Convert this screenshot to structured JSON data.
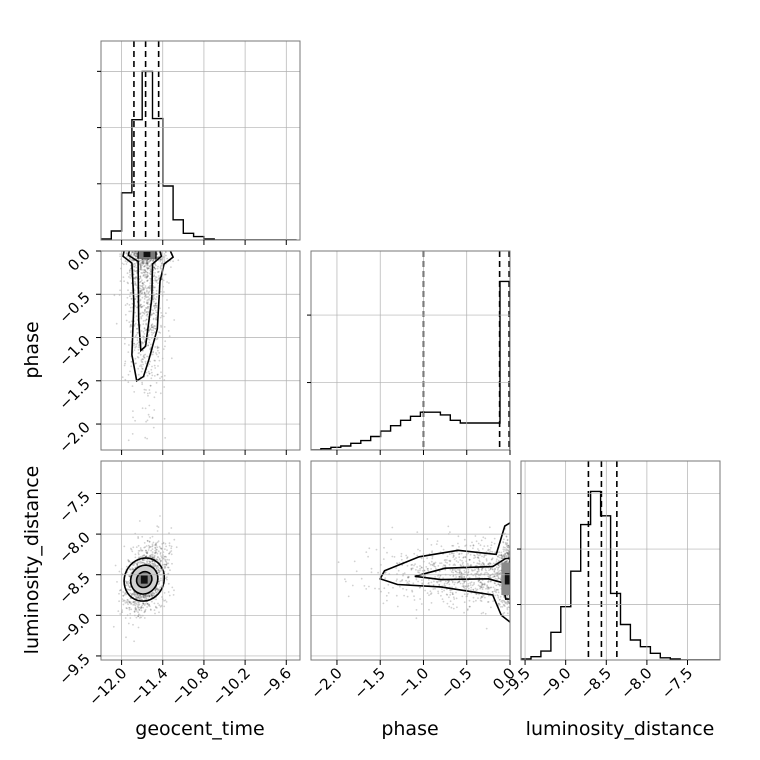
{
  "chart_data": {
    "type": "corner",
    "parameters": [
      "geocent_time",
      "phase",
      "luminosity_distance"
    ],
    "axis_labels": {
      "x": [
        "geocent_time",
        "phase",
        "luminosity_distance"
      ],
      "y": [
        "phase",
        "luminosity_distance"
      ]
    },
    "ranges": {
      "geocent_time": [
        -12.3,
        -9.4
      ],
      "phase": [
        -2.3,
        0.0
      ],
      "luminosity_distance": [
        -9.55,
        -7.1
      ]
    },
    "ticks": {
      "geocent_time": [
        -12.0,
        -11.4,
        -10.8,
        -10.2,
        -9.6
      ],
      "phase": [
        -2.0,
        -1.5,
        -1.0,
        -0.5,
        0.0
      ],
      "luminosity_distance": [
        -9.5,
        -9.0,
        -8.5,
        -8.0,
        -7.5
      ]
    },
    "tick_labels": {
      "geocent_time": [
        "−12.0",
        "−11.4",
        "−10.8",
        "−10.2",
        "−9.6"
      ],
      "phase": [
        "−2.0",
        "−1.5",
        "−1.0",
        "−0.5",
        "0.0"
      ],
      "luminosity_distance": [
        "−9.5",
        "−9.0",
        "−8.5",
        "−8.0",
        "−7.5"
      ]
    },
    "quantile_lines": {
      "geocent_time": [
        -11.82,
        -11.65,
        -11.46
      ],
      "phase": [
        -1.0,
        -0.12,
        -0.01
      ],
      "luminosity_distance": [
        -8.72,
        -8.56,
        -8.37
      ]
    },
    "histograms": {
      "geocent_time": {
        "edges": [
          -12.3,
          -12.15,
          -12.0,
          -11.85,
          -11.7,
          -11.55,
          -11.4,
          -11.25,
          -11.1,
          -10.95,
          -10.8,
          -10.65,
          -10.5,
          -10.35,
          -10.2,
          -10.05,
          -9.9,
          -9.75,
          -9.6,
          -9.45
        ],
        "counts": [
          1,
          8,
          42,
          107,
          150,
          108,
          48,
          18,
          6,
          3,
          1,
          0,
          0,
          0,
          0,
          0,
          0,
          0,
          0
        ]
      },
      "phase": {
        "edges": [
          -2.3,
          -2.185,
          -2.07,
          -1.955,
          -1.84,
          -1.725,
          -1.61,
          -1.495,
          -1.38,
          -1.265,
          -1.15,
          -1.035,
          -0.92,
          -0.805,
          -0.69,
          -0.575,
          -0.46,
          -0.345,
          -0.23,
          -0.115,
          0.0
        ],
        "counts": [
          0,
          1,
          2,
          3,
          5,
          7,
          10,
          14,
          18,
          22,
          25,
          28,
          28,
          26,
          22,
          20,
          20,
          20,
          20,
          125
        ]
      },
      "luminosity_distance": {
        "edges": [
          -9.55,
          -9.4275,
          -9.305,
          -9.1825,
          -9.06,
          -8.9375,
          -8.815,
          -8.6925,
          -8.57,
          -8.4475,
          -8.325,
          -8.2025,
          -8.08,
          -7.9575,
          -7.835,
          -7.7125,
          -7.59,
          -7.4675,
          -7.345,
          -7.2225,
          -7.1
        ],
        "counts": [
          1,
          3,
          8,
          25,
          48,
          80,
          122,
          152,
          130,
          60,
          32,
          18,
          12,
          6,
          2,
          1,
          0,
          0,
          0,
          0
        ]
      }
    },
    "scatter_panels": [
      {
        "x": "geocent_time",
        "y": "phase",
        "center": [
          -11.65,
          -0.7
        ],
        "density_peak": [
          -11.62,
          -0.05
        ]
      },
      {
        "x": "geocent_time",
        "y": "luminosity_distance",
        "center": [
          -11.65,
          -8.55
        ],
        "density_peak": [
          -11.66,
          -8.56
        ]
      },
      {
        "x": "phase",
        "y": "luminosity_distance",
        "center": [
          -0.6,
          -8.5
        ],
        "density_peak": [
          -0.02,
          -8.55
        ]
      }
    ],
    "grid": true
  }
}
